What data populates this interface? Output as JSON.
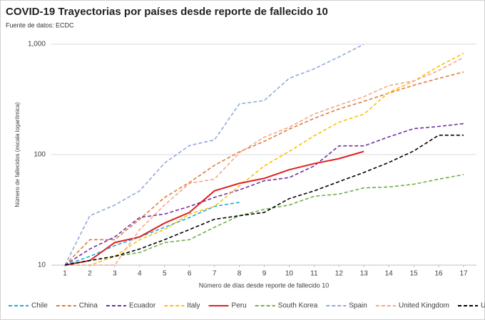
{
  "chart_data": {
    "type": "line",
    "title": "COVID-19 Trayectorias por países desde reporte de fallecido 10",
    "subtitle": "Fuente de datos: ECDC",
    "x_label": "Número de días desde reporte de fallecido 10",
    "y_label": "Número de fallecidos (escala logarítmica)",
    "x": [
      1,
      2,
      3,
      4,
      5,
      6,
      7,
      8,
      9,
      10,
      11,
      12,
      13,
      14,
      15,
      16,
      17
    ],
    "xlim": [
      1,
      17
    ],
    "xticks": [
      1,
      2,
      3,
      4,
      5,
      6,
      7,
      8,
      9,
      10,
      11,
      12,
      13,
      14,
      15,
      16,
      17
    ],
    "ylim": [
      10,
      1000
    ],
    "yticks": [
      10,
      100,
      {
        "value": 1000,
        "label": "1,000"
      }
    ],
    "y_scale": "log",
    "grid": true,
    "legend": "bottom",
    "series": [
      {
        "name": "Chile",
        "color": "#1fa8e0",
        "line_style": "dashed",
        "values": [
          10,
          12,
          15,
          18,
          22,
          27,
          34,
          37,
          null,
          null,
          null,
          null,
          null,
          null,
          null,
          null,
          null
        ]
      },
      {
        "name": "China",
        "color": "#e07b39",
        "line_style": "dashed",
        "values": [
          10,
          17,
          17,
          26,
          41,
          56,
          80,
          106,
          132,
          170,
          213,
          259,
          304,
          361,
          425,
          490,
          560
        ]
      },
      {
        "name": "Ecuador",
        "color": "#7030a0",
        "line_style": "dashed",
        "values": [
          10,
          14,
          18,
          27,
          29,
          34,
          41,
          48,
          58,
          62,
          79,
          120,
          120,
          145,
          172,
          180,
          191
        ]
      },
      {
        "name": "Italy",
        "color": "#ffc000",
        "line_style": "dashed",
        "values": [
          10,
          10,
          12,
          17,
          21,
          29,
          34,
          52,
          79,
          107,
          148,
          197,
          233,
          366,
          463,
          631,
          827
        ]
      },
      {
        "name": "Peru",
        "color": "#e02020",
        "line_style": "solid",
        "values": [
          10,
          11,
          16,
          18,
          24,
          30,
          47,
          55,
          61,
          73,
          83,
          92,
          107,
          null,
          null,
          null,
          null
        ]
      },
      {
        "name": "South Korea",
        "color": "#70ad47",
        "line_style": "dashed",
        "values": [
          10,
          11,
          12,
          13,
          16,
          17,
          22,
          28,
          32,
          35,
          42,
          44,
          50,
          51,
          54,
          60,
          66
        ]
      },
      {
        "name": "Spain",
        "color": "#8faadc",
        "line_style": "dashed",
        "values": [
          10,
          28,
          35,
          47,
          84,
          121,
          136,
          288,
          309,
          491,
          598,
          767,
          1000,
          null,
          null,
          null,
          null
        ]
      },
      {
        "name": "United Kingdom",
        "color": "#f4a58a",
        "line_style": "dashed",
        "values": [
          10,
          10,
          10,
          21,
          35,
          55,
          60,
          104,
          144,
          177,
          233,
          281,
          335,
          422,
          465,
          578,
          759
        ]
      },
      {
        "name": "United States",
        "color": "#000000",
        "line_style": "dashed",
        "values": [
          10,
          11,
          12,
          14,
          17,
          21,
          26,
          28,
          30,
          40,
          47,
          57,
          69,
          85,
          108,
          150,
          150
        ]
      }
    ]
  }
}
